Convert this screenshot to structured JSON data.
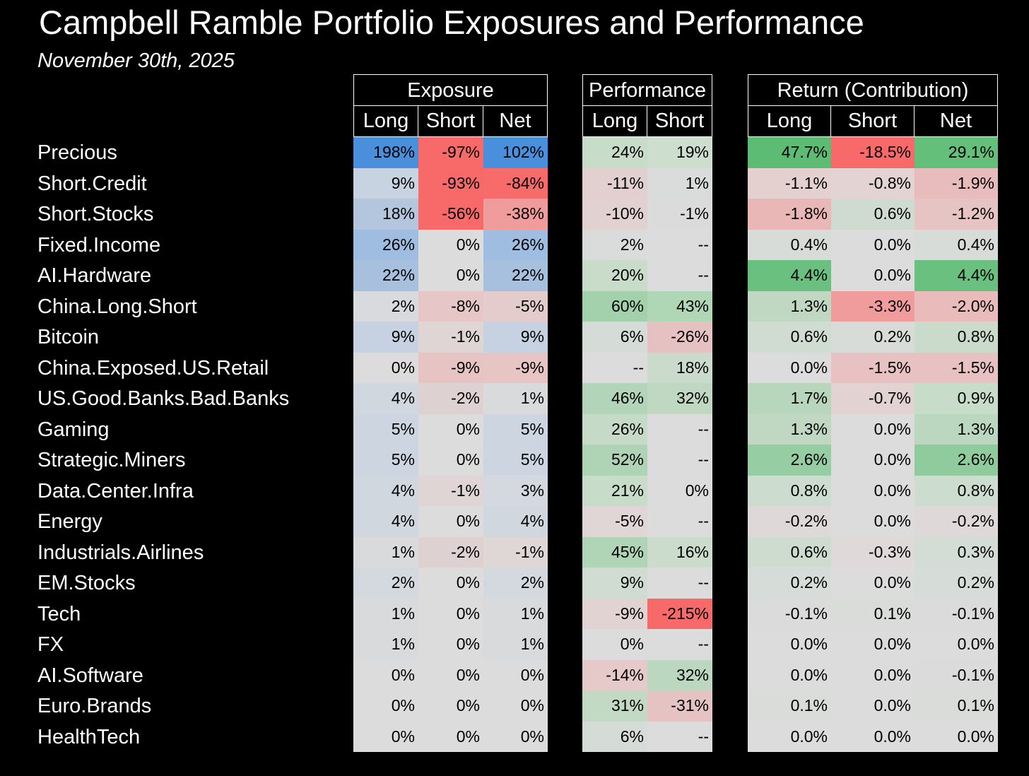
{
  "title": "Campbell Ramble Portfolio Exposures and Performance",
  "subtitle": "November 30th, 2025",
  "rows": [
    "Precious",
    "Short.Credit",
    "Short.Stocks",
    "Fixed.Income",
    "AI.Hardware",
    "China.Long.Short",
    "Bitcoin",
    "China.Exposed.US.Retail",
    "US.Good.Banks.Bad.Banks",
    "Gaming",
    "Strategic.Miners",
    "Data.Center.Infra",
    "Energy",
    "Industrials.Airlines",
    "EM.Stocks",
    "Tech",
    "FX",
    "AI.Software",
    "Euro.Brands",
    "HealthTech"
  ],
  "groups": {
    "exposure": {
      "title": "Exposure",
      "columns": [
        "Long",
        "Short",
        "Net"
      ],
      "values": [
        [
          "198%",
          "-97%",
          "102%"
        ],
        [
          "9%",
          "-93%",
          "-84%"
        ],
        [
          "18%",
          "-56%",
          "-38%"
        ],
        [
          "26%",
          "0%",
          "26%"
        ],
        [
          "22%",
          "0%",
          "22%"
        ],
        [
          "2%",
          "-8%",
          "-5%"
        ],
        [
          "9%",
          "-1%",
          "9%"
        ],
        [
          "0%",
          "-9%",
          "-9%"
        ],
        [
          "4%",
          "-2%",
          "1%"
        ],
        [
          "5%",
          "0%",
          "5%"
        ],
        [
          "5%",
          "0%",
          "5%"
        ],
        [
          "4%",
          "-1%",
          "3%"
        ],
        [
          "4%",
          "0%",
          "4%"
        ],
        [
          "1%",
          "-2%",
          "-1%"
        ],
        [
          "2%",
          "0%",
          "2%"
        ],
        [
          "1%",
          "0%",
          "1%"
        ],
        [
          "1%",
          "0%",
          "1%"
        ],
        [
          "0%",
          "0%",
          "0%"
        ],
        [
          "0%",
          "0%",
          "0%"
        ],
        [
          "0%",
          "0%",
          "0%"
        ]
      ],
      "colors": [
        [
          "#4a8fdc",
          "#f86a6a",
          "#4a8fdc"
        ],
        [
          "#c8d3e1",
          "#f86a6a",
          "#f86b6b"
        ],
        [
          "#b3c6de",
          "#f86a6a",
          "#f09c9c"
        ],
        [
          "#9fbde0",
          "#dcdcdc",
          "#9fbde0"
        ],
        [
          "#a6c0de",
          "#dcdcdc",
          "#a6c0de"
        ],
        [
          "#d8dadd",
          "#e6c6c6",
          "#e5cccc"
        ],
        [
          "#c6d2e1",
          "#dfd5d5",
          "#c6d2e1"
        ],
        [
          "#dcdcdc",
          "#e6c4c4",
          "#e7c5c5"
        ],
        [
          "#d1d7df",
          "#ded1d1",
          "#d9dadc"
        ],
        [
          "#ccd5e0",
          "#dcdcdc",
          "#ccd5e0"
        ],
        [
          "#ccd5e0",
          "#dcdcdc",
          "#ccd5e0"
        ],
        [
          "#d1d7df",
          "#dfd5d5",
          "#d4d8df"
        ],
        [
          "#d1d7df",
          "#dcdcdc",
          "#d1d7df"
        ],
        [
          "#d9dadc",
          "#ded1d1",
          "#dfd6d6"
        ],
        [
          "#d4d8df",
          "#dcdcdc",
          "#d4d8df"
        ],
        [
          "#d9dadc",
          "#dcdcdc",
          "#d9dadc"
        ],
        [
          "#d9dadc",
          "#dcdcdc",
          "#d9dadc"
        ],
        [
          "#dcdcdc",
          "#dcdcdc",
          "#dcdcdc"
        ],
        [
          "#dcdcdc",
          "#dcdcdc",
          "#dcdcdc"
        ],
        [
          "#dcdcdc",
          "#dcdcdc",
          "#dcdcdc"
        ]
      ]
    },
    "performance": {
      "title": "Performance",
      "columns": [
        "Long",
        "Short"
      ],
      "values": [
        [
          "24%",
          "19%"
        ],
        [
          "-11%",
          "1%"
        ],
        [
          "-10%",
          "-1%"
        ],
        [
          "2%",
          "--"
        ],
        [
          "20%",
          "--"
        ],
        [
          "60%",
          "43%"
        ],
        [
          "6%",
          "-26%"
        ],
        [
          "--",
          "18%"
        ],
        [
          "46%",
          "32%"
        ],
        [
          "26%",
          "--"
        ],
        [
          "52%",
          "--"
        ],
        [
          "21%",
          "0%"
        ],
        [
          "-5%",
          "--"
        ],
        [
          "45%",
          "16%"
        ],
        [
          "9%",
          "--"
        ],
        [
          "-9%",
          "-215%"
        ],
        [
          "0%",
          "--"
        ],
        [
          "-14%",
          "32%"
        ],
        [
          "31%",
          "-31%"
        ],
        [
          "6%",
          "--"
        ]
      ],
      "colors": [
        [
          "#c8dcca",
          "#cddece"
        ],
        [
          "#e2d0d0",
          "#d9dcda"
        ],
        [
          "#e2d1d1",
          "#dcdbdb"
        ],
        [
          "#d9dcda",
          "#dcdcdc"
        ],
        [
          "#c9dcca",
          "#dcdcdc"
        ],
        [
          "#a2d1ab",
          "#afd6b5"
        ],
        [
          "#d5dcd7",
          "#e6c1c1"
        ],
        [
          "#dcdcdc",
          "#cadbcb"
        ],
        [
          "#b2d4b8",
          "#c0d8c2"
        ],
        [
          "#c6dac8",
          "#dcdcdc"
        ],
        [
          "#aed3b5",
          "#dcdcdc"
        ],
        [
          "#c8dcca",
          "#dcdcdc"
        ],
        [
          "#e0d6d6",
          "#dcdcdc"
        ],
        [
          "#b0d4b6",
          "#cbdccd"
        ],
        [
          "#d0dbd2",
          "#dcdcdc"
        ],
        [
          "#e2d3d3",
          "#f86a6a"
        ],
        [
          "#dcdcdc",
          "#dcdcdc"
        ],
        [
          "#e6c9c9",
          "#bcd7bf"
        ],
        [
          "#c2d9c4",
          "#e6c3c3"
        ],
        [
          "#d5dcd7",
          "#dcdcdc"
        ]
      ]
    },
    "return": {
      "title": "Return (Contribution)",
      "columns": [
        "Long",
        "Short",
        "Net"
      ],
      "values": [
        [
          "47.7%",
          "-18.5%",
          "29.1%"
        ],
        [
          "-1.1%",
          "-0.8%",
          "-1.9%"
        ],
        [
          "-1.8%",
          "0.6%",
          "-1.2%"
        ],
        [
          "0.4%",
          "0.0%",
          "0.4%"
        ],
        [
          "4.4%",
          "0.0%",
          "4.4%"
        ],
        [
          "1.3%",
          "-3.3%",
          "-2.0%"
        ],
        [
          "0.6%",
          "0.2%",
          "0.8%"
        ],
        [
          "0.0%",
          "-1.5%",
          "-1.5%"
        ],
        [
          "1.7%",
          "-0.7%",
          "0.9%"
        ],
        [
          "1.3%",
          "0.0%",
          "1.3%"
        ],
        [
          "2.6%",
          "0.0%",
          "2.6%"
        ],
        [
          "0.8%",
          "0.0%",
          "0.8%"
        ],
        [
          "-0.2%",
          "0.0%",
          "-0.2%"
        ],
        [
          "0.6%",
          "-0.3%",
          "0.3%"
        ],
        [
          "0.2%",
          "0.0%",
          "0.2%"
        ],
        [
          "-0.1%",
          "0.1%",
          "-0.1%"
        ],
        [
          "0.0%",
          "0.0%",
          "0.0%"
        ],
        [
          "0.0%",
          "0.0%",
          "-0.1%"
        ],
        [
          "0.1%",
          "0.0%",
          "0.1%"
        ],
        [
          "0.0%",
          "0.0%",
          "0.0%"
        ]
      ],
      "colors": [
        [
          "#5cbc74",
          "#f86a6a",
          "#63bf7a"
        ],
        [
          "#e5d0d0",
          "#e3d3d3",
          "#e8bcbc"
        ],
        [
          "#eab7b7",
          "#cfdbd1",
          "#e7c4c4"
        ],
        [
          "#d7dcd8",
          "#dcdcdc",
          "#d7dcd8"
        ],
        [
          "#6ac07f",
          "#dcdcdc",
          "#6ac07f"
        ],
        [
          "#c0d8c2",
          "#f09c9c",
          "#eabbbb"
        ],
        [
          "#d0dbd2",
          "#d7dcd8",
          "#cadbcb"
        ],
        [
          "#dcdcdc",
          "#e8c2c2",
          "#e8c2c2"
        ],
        [
          "#b7d6bc",
          "#e2d2d2",
          "#c8dcca"
        ],
        [
          "#c0d8c2",
          "#dcdcdc",
          "#bcd7bf"
        ],
        [
          "#97cda3",
          "#dcdcdc",
          "#8fcb9c"
        ],
        [
          "#ccdcce",
          "#dcdcdc",
          "#ccdcce"
        ],
        [
          "#dfd8d8",
          "#dcdcdc",
          "#dfd8d8"
        ],
        [
          "#cedcd0",
          "#dfd9d9",
          "#d3dcd5"
        ],
        [
          "#d6dcd7",
          "#dcdcdc",
          "#d6dcd7"
        ],
        [
          "#dcdbdb",
          "#dadcda",
          "#dcdbdb"
        ],
        [
          "#dcdcdc",
          "#dcdcdc",
          "#dcdcdc"
        ],
        [
          "#dcdcdc",
          "#dcdcdc",
          "#dcdbdb"
        ],
        [
          "#dadcda",
          "#dcdcdc",
          "#dadcda"
        ],
        [
          "#dcdcdc",
          "#dcdcdc",
          "#dcdcdc"
        ]
      ]
    }
  }
}
